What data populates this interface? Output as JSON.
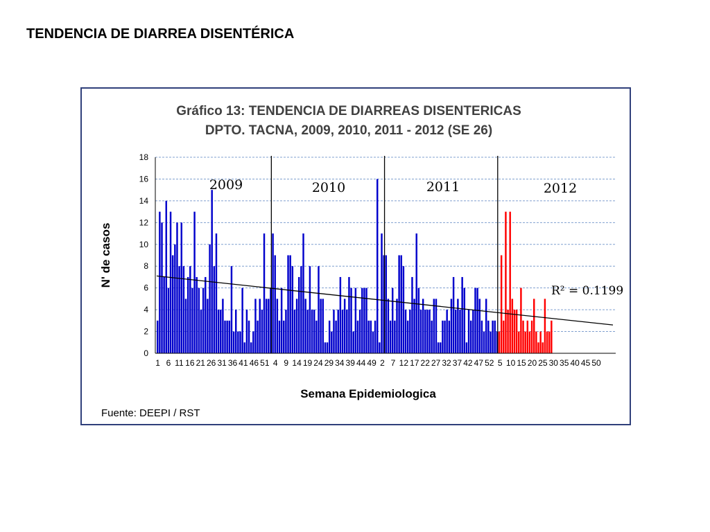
{
  "slide": {
    "title": "TENDENCIA DE DIARREA DISENTÉRICA"
  },
  "chart_data": {
    "type": "bar",
    "title_line1": "Gráfico 13: TENDENCIA DE DIARREAS DISENTERICAS",
    "title_line2": "DPTO. TACNA, 2009, 2010, 2011 - 2012 (SE 26)",
    "xlabel": "Semana Epidemiologica",
    "ylabel": "N' de casos",
    "source": "Fuente: DEEPI / RST",
    "r_squared_label": "R² = 0.1199",
    "ylim": [
      0,
      18
    ],
    "yticks": [
      "0",
      "2",
      "4",
      "6",
      "8",
      "10",
      "12",
      "14",
      "16",
      "18"
    ],
    "grid": true,
    "xtick_labels": [
      "1",
      "6",
      "11",
      "16",
      "21",
      "26",
      "31",
      "36",
      "41",
      "46",
      "51",
      "4",
      "9",
      "14",
      "19",
      "24",
      "29",
      "34",
      "39",
      "44",
      "49",
      "2",
      "7",
      "12",
      "17",
      "22",
      "27",
      "32",
      "37",
      "42",
      "47",
      "52",
      "5",
      "10",
      "15",
      "20",
      "25",
      "30",
      "35",
      "40",
      "45",
      "50"
    ],
    "colors": {
      "historic": "#0000cc",
      "current": "#ff0000",
      "trend": "#000000",
      "grid": "#7f9fcf",
      "frame": "#2f3f7a"
    },
    "trendline": {
      "start": 7.1,
      "end": 2.6
    },
    "series": [
      {
        "year_label": "2009",
        "color": "historic",
        "values": [
          3,
          13,
          12,
          7,
          14,
          6,
          13,
          9,
          10,
          12,
          8,
          12,
          8,
          5,
          7,
          8,
          6,
          13,
          7,
          6,
          4,
          6,
          7,
          5,
          10,
          15,
          8,
          11,
          4,
          4,
          5,
          3,
          3,
          3,
          8,
          2,
          4,
          2,
          2,
          6,
          1,
          4,
          3,
          1,
          2,
          5,
          3,
          5,
          4,
          11,
          5,
          5,
          6
        ]
      },
      {
        "year_label": "2010",
        "color": "historic",
        "values": [
          11,
          9,
          5,
          3,
          6,
          3,
          4,
          9,
          9,
          8,
          4,
          5,
          7,
          8,
          11,
          5,
          4,
          8,
          4,
          4,
          3,
          8,
          5,
          5,
          1,
          1,
          3,
          2,
          4,
          3,
          4,
          7,
          4,
          5,
          4,
          7,
          6,
          2,
          6,
          3,
          4,
          6,
          6,
          6,
          3,
          3,
          2,
          3,
          16,
          1,
          11,
          9
        ]
      },
      {
        "year_label": "2011",
        "color": "historic",
        "values": [
          9,
          5,
          3,
          6,
          3,
          5,
          9,
          9,
          8,
          4,
          3,
          4,
          7,
          5,
          11,
          6,
          4,
          5,
          4,
          4,
          4,
          3,
          5,
          5,
          1,
          1,
          3,
          3,
          4,
          3,
          5,
          7,
          4,
          5,
          4,
          7,
          6,
          1,
          4,
          3,
          4,
          6,
          6,
          5,
          3,
          2,
          5,
          3,
          2,
          3,
          3,
          2
        ]
      },
      {
        "year_label": "2012",
        "color": "current",
        "values": [
          2,
          9,
          3,
          13,
          4,
          13,
          5,
          4,
          4,
          2,
          6,
          3,
          2,
          3,
          2,
          3,
          5,
          2,
          1,
          2,
          1,
          5,
          2,
          2,
          3,
          0
        ]
      }
    ]
  }
}
